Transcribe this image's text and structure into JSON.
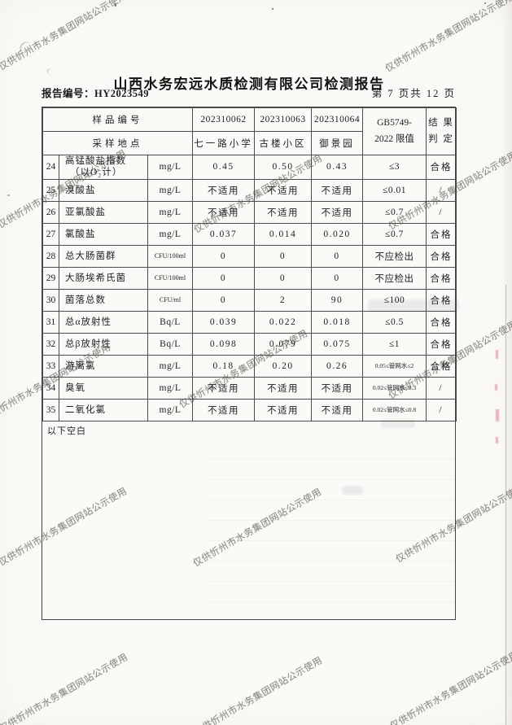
{
  "page": {
    "title": "山西水务宏远水质检测有限公司检测报告",
    "report_no_label": "报告编号：HY2023549",
    "page_indicator": "第 7 页共 12 页"
  },
  "watermark": {
    "text": "仅供忻州市水务集团网站公示使用"
  },
  "table": {
    "header": {
      "row1_label": "样品编号",
      "row2_label": "采样地点",
      "sample_ids": [
        "202310062",
        "202310063",
        "202310064"
      ],
      "locations": [
        "七一路小学",
        "古楼小区",
        "御景园"
      ],
      "limit_line1": "GB5749-",
      "limit_line2": "2022 限值",
      "result_line1": "结 果",
      "result_line2": "判 定"
    },
    "rows": [
      {
        "no": "24",
        "name": "高锰酸盐指数",
        "name2": "（以O₂计）",
        "unit": "mg/L",
        "v1": "0.45",
        "v2": "0.50",
        "v3": "0.43",
        "limit": "≤3",
        "result": "合格"
      },
      {
        "no": "25",
        "name": "溴酸盐",
        "unit": "mg/L",
        "v1": "不适用",
        "v2": "不适用",
        "v3": "不适用",
        "limit": "≤0.01",
        "result": "/"
      },
      {
        "no": "26",
        "name": "亚氯酸盐",
        "unit": "mg/L",
        "v1": "不适用",
        "v2": "不适用",
        "v3": "不适用",
        "limit": "≤0.7",
        "result": "/"
      },
      {
        "no": "27",
        "name": "氯酸盐",
        "unit": "mg/L",
        "v1": "0.037",
        "v2": "0.014",
        "v3": "0.020",
        "limit": "≤0.7",
        "result": "合格"
      },
      {
        "no": "28",
        "name": "总大肠菌群",
        "unit": "CFU/100ml",
        "v1": "0",
        "v2": "0",
        "v3": "0",
        "limit": "不应检出",
        "result": "合格"
      },
      {
        "no": "29",
        "name": "大肠埃希氏菌",
        "unit": "CFU/100ml",
        "v1": "0",
        "v2": "0",
        "v3": "0",
        "limit": "不应检出",
        "result": "合格"
      },
      {
        "no": "30",
        "name": "菌落总数",
        "unit": "CFU/ml",
        "v1": "0",
        "v2": "2",
        "v3": "90",
        "limit": "≤100",
        "result": "合格"
      },
      {
        "no": "31",
        "name": "总α放射性",
        "unit": "Bq/L",
        "v1": "0.039",
        "v2": "0.022",
        "v3": "0.018",
        "limit": "≤0.5",
        "result": "合格"
      },
      {
        "no": "32",
        "name": "总β放射性",
        "unit": "Bq/L",
        "v1": "0.098",
        "v2": "0.079",
        "v3": "0.075",
        "limit": "≤1",
        "result": "合格"
      },
      {
        "no": "33",
        "name": "游离氯",
        "unit": "mg/L",
        "v1": "0.18",
        "v2": "0.20",
        "v3": "0.26",
        "limit": "0.05≤管网水≤2",
        "result": "合格"
      },
      {
        "no": "34",
        "name": "臭氧",
        "unit": "mg/L",
        "v1": "不适用",
        "v2": "不适用",
        "v3": "不适用",
        "limit": "0.02≤管网水≤0.3",
        "result": "/"
      },
      {
        "no": "35",
        "name": "二氧化氯",
        "unit": "mg/L",
        "v1": "不适用",
        "v2": "不适用",
        "v3": "不适用",
        "limit": "0.02≤管网水≤0.8",
        "result": "/"
      }
    ],
    "footer_note": "以下空白"
  }
}
